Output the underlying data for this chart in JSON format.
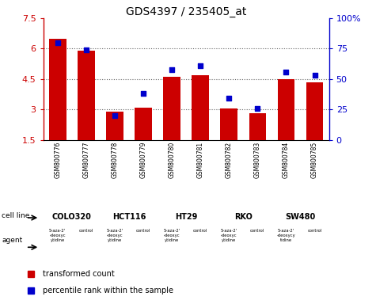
{
  "title": "GDS4397 / 235405_at",
  "samples": [
    "GSM800776",
    "GSM800777",
    "GSM800778",
    "GSM800779",
    "GSM800780",
    "GSM800781",
    "GSM800782",
    "GSM800783",
    "GSM800784",
    "GSM800785"
  ],
  "bar_values": [
    6.5,
    5.9,
    2.9,
    3.1,
    4.6,
    4.7,
    3.05,
    2.8,
    4.5,
    4.35
  ],
  "dot_values": [
    80,
    74,
    20,
    38,
    58,
    61,
    34,
    26,
    56,
    53
  ],
  "ylim_left": [
    1.5,
    7.5
  ],
  "ylim_right": [
    0,
    100
  ],
  "yticks_left": [
    1.5,
    3.0,
    4.5,
    6.0,
    7.5
  ],
  "yticks_right": [
    0,
    25,
    50,
    75,
    100
  ],
  "yticklabels_left": [
    "1.5",
    "3",
    "4.5",
    "6",
    "7.5"
  ],
  "yticklabels_right": [
    "0",
    "25",
    "50",
    "75",
    "100%"
  ],
  "bar_color": "#cc0000",
  "dot_color": "#0000cc",
  "cell_lines": [
    "COLO320",
    "HCT116",
    "HT29",
    "RKO",
    "SW480"
  ],
  "cell_line_spans": [
    [
      0,
      2
    ],
    [
      2,
      4
    ],
    [
      4,
      6
    ],
    [
      6,
      8
    ],
    [
      8,
      10
    ]
  ],
  "cell_line_color": "#aaffaa",
  "agent_labels": [
    "5-aza-2'\n-deoxyc\nytidine",
    "control",
    "5-aza-2'\n-deoxyc\nytidine",
    "control",
    "5-aza-2'\n-deoxyc\nytidine",
    "control",
    "5-aza-2'\n-deoxyc\nytidine",
    "control",
    "5-aza-2'\n-deoxycy\ntidine",
    "control"
  ],
  "agent_color_drug": "#ff55ff",
  "agent_color_control": "#cc33cc",
  "grid_color": "#666666",
  "bg_color": "#ffffff",
  "sample_bg_color": "#cccccc",
  "legend_red": "transformed count",
  "legend_blue": "percentile rank within the sample"
}
